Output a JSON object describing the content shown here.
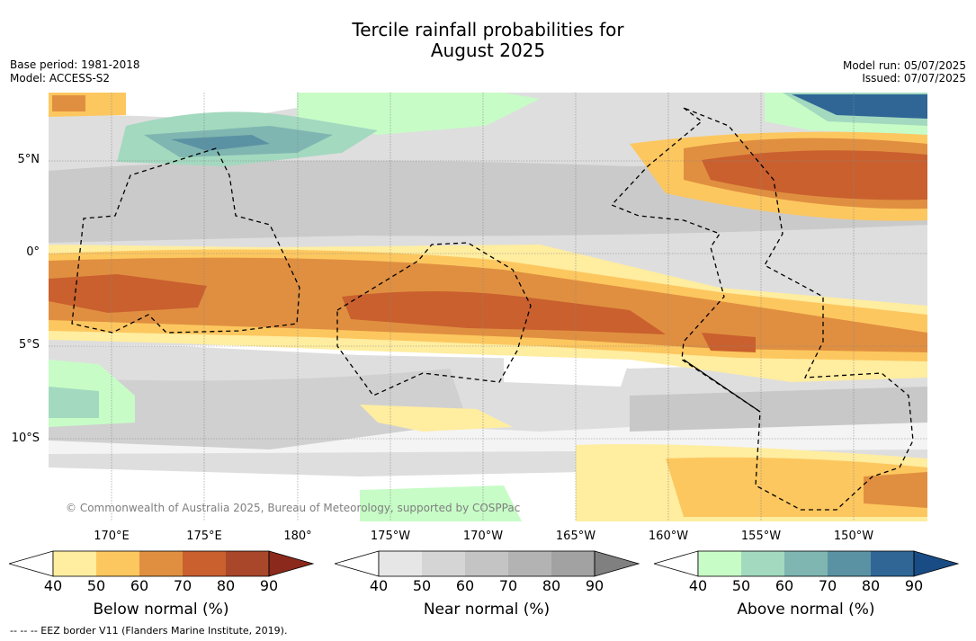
{
  "title": {
    "line1": "Tercile rainfall probabilities for",
    "line2": "August 2025"
  },
  "meta_left": {
    "base_period": "Base period: 1981-2018",
    "model": "Model: ACCESS-S2"
  },
  "meta_right": {
    "model_run": "Model run: 05/07/2025",
    "issued": "Issued: 07/07/2025"
  },
  "copyright": "© Commonwealth of Australia 2025, Bureau of Meteorology, supported by COSPPac",
  "lon_labels": [
    "170°E",
    "175°E",
    "180°",
    "175°W",
    "170°W",
    "165°W",
    "160°W",
    "155°W",
    "150°W"
  ],
  "lat_labels": [
    "5°N",
    "0°",
    "5°S",
    "10°S"
  ],
  "colorbars": [
    {
      "label": "Below normal (%)",
      "ticks": [
        "40",
        "50",
        "60",
        "70",
        "80",
        "90"
      ],
      "colors": [
        "#ffeda0",
        "#fdc75f",
        "#e08f40",
        "#c9602e",
        "#a9472a",
        "#8b2a1c"
      ]
    },
    {
      "label": "Near normal (%)",
      "ticks": [
        "40",
        "50",
        "60",
        "70",
        "80",
        "90"
      ],
      "colors": [
        "#e6e6e6",
        "#d5d5d5",
        "#c4c4c4",
        "#b3b3b3",
        "#a2a2a2",
        "#808080"
      ]
    },
    {
      "label": "Above normal (%)",
      "ticks": [
        "40",
        "50",
        "60",
        "70",
        "80",
        "90"
      ],
      "colors": [
        "#c7fcc6",
        "#a3d9bf",
        "#7fb6b1",
        "#5b92a3",
        "#2f6696",
        "#194c84"
      ]
    }
  ],
  "footer": "--  --  -- EEZ border V11 (Flanders Marine Institute, 2019)."
}
